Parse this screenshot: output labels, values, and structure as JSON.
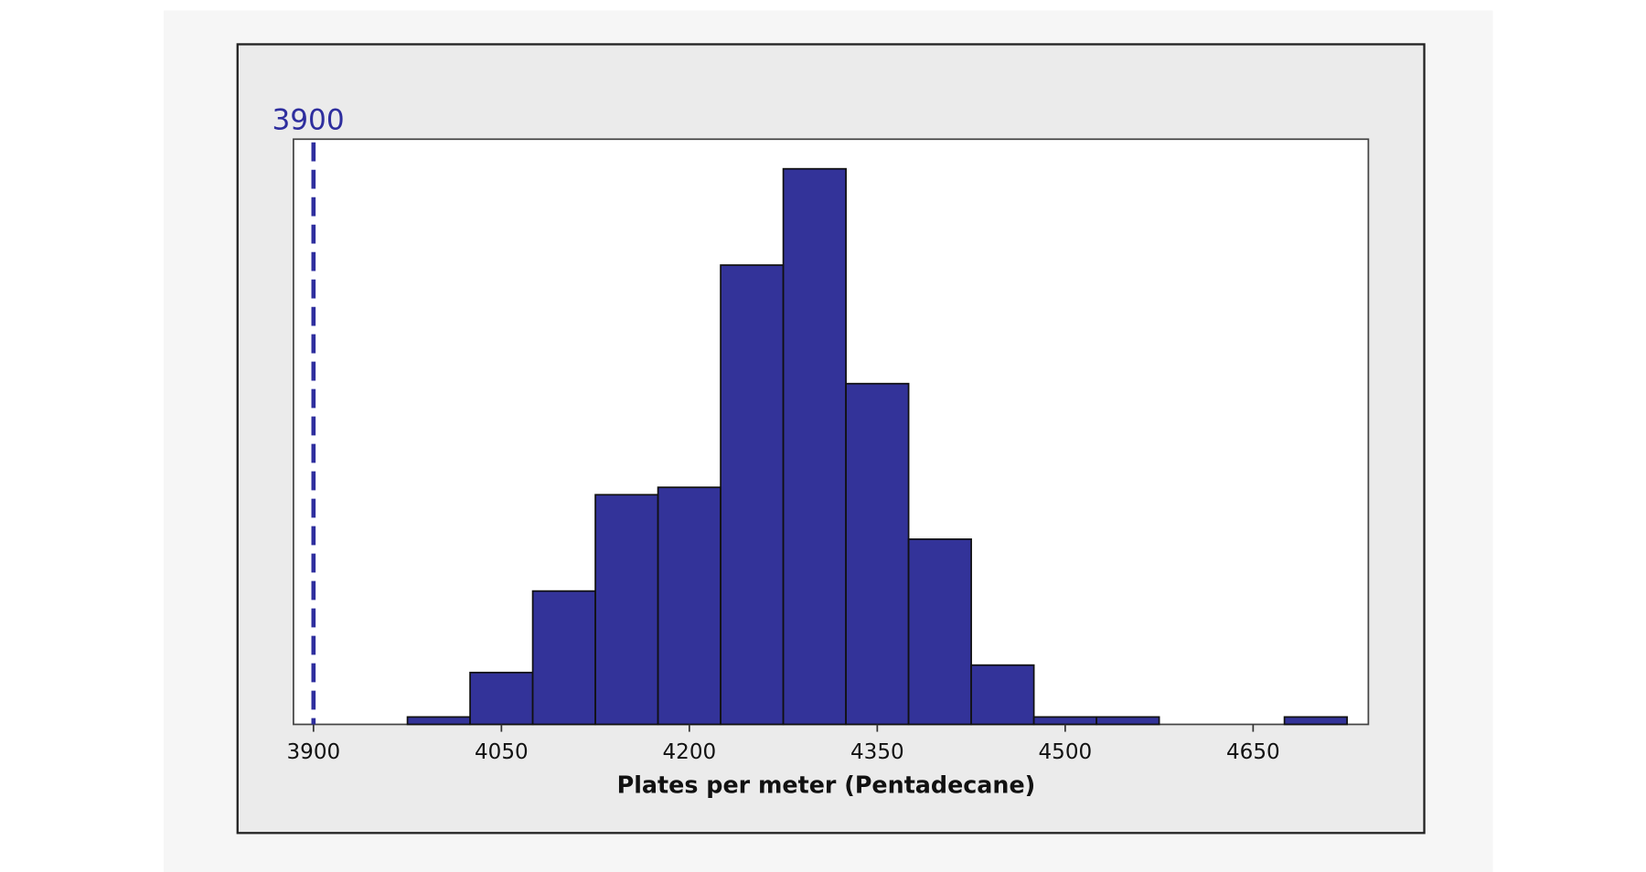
{
  "chart_data": {
    "type": "histogram",
    "xlabel": "Plates per meter (Pentadecane)",
    "bins": [
      3975,
      4025,
      4075,
      4125,
      4175,
      4225,
      4275,
      4325,
      4375,
      4425,
      4475,
      4525,
      4575,
      4625,
      4675,
      4725
    ],
    "values": [
      1,
      7,
      18,
      31,
      32,
      62,
      75,
      46,
      25,
      8,
      1,
      1,
      0,
      0,
      1
    ],
    "color": "#333399",
    "xlim": [
      3884,
      4742
    ],
    "xticks": [
      3900,
      4050,
      4200,
      4350,
      4500,
      4650
    ],
    "ylim": [
      0,
      79
    ],
    "reference_line": {
      "x": 3900,
      "color": "#2e2e9e"
    }
  }
}
